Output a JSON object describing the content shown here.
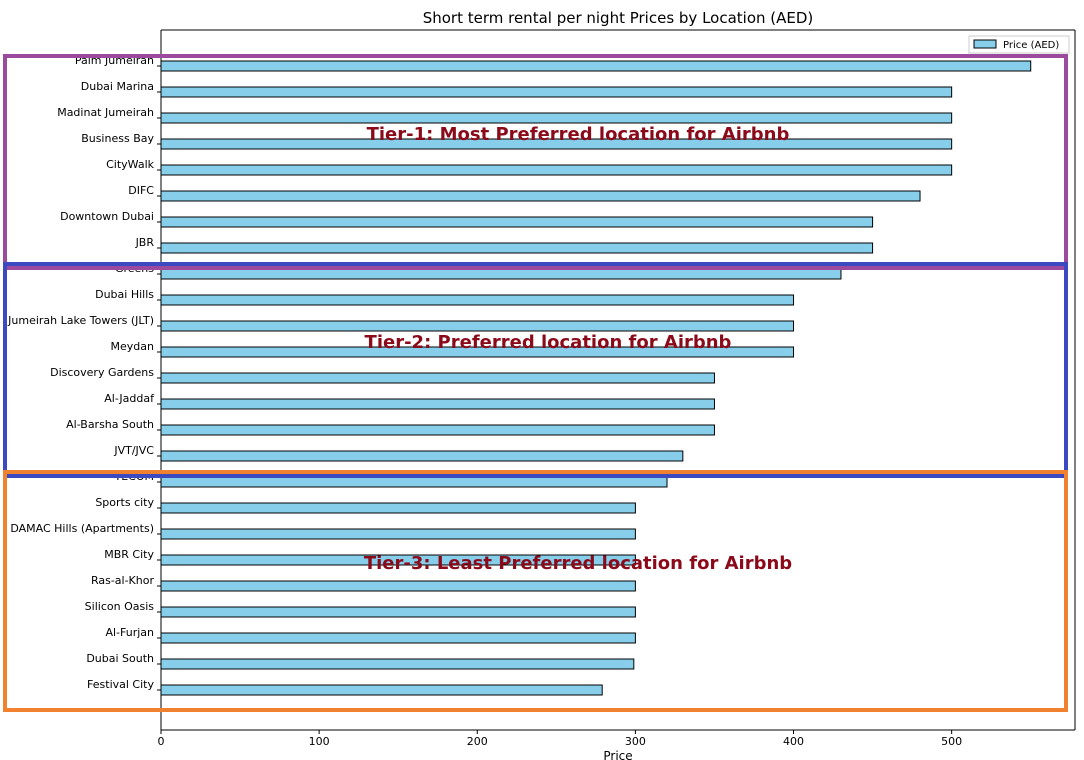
{
  "chart_data": {
    "type": "bar",
    "orientation": "horizontal",
    "title": "Short term rental per night Prices by Location (AED)",
    "xlabel": "Price",
    "ylabel": "",
    "xlim": [
      0,
      578
    ],
    "xticks": [
      0,
      100,
      200,
      300,
      400,
      500
    ],
    "grid": false,
    "legend": {
      "position": "top-right",
      "entries": [
        "Price (AED)"
      ]
    },
    "bar_color": "#87ceeb",
    "edge_color": "#000000",
    "categories": [
      "Palm Jumeirah",
      "Dubai Marina",
      "Madinat Jumeirah",
      "Business Bay",
      "CityWalk",
      "DIFC",
      "Downtown Dubai",
      "JBR",
      "Greens",
      "Dubai Hills",
      "Jumeirah Lake Towers (JLT)",
      "Meydan",
      "Discovery Gardens",
      "Al-Jaddaf",
      "Al-Barsha South",
      "JVT/JVC",
      "TECOM",
      "Sports city",
      "DAMAC Hills (Apartments)",
      "MBR City",
      "Ras-al-Khor",
      "Silicon Oasis",
      "Al-Furjan",
      "Dubai South",
      "Festival City"
    ],
    "series": [
      {
        "name": "Price (AED)",
        "values": [
          550,
          500,
          500,
          500,
          500,
          480,
          450,
          450,
          430,
          400,
          400,
          400,
          350,
          350,
          350,
          330,
          320,
          300,
          300,
          300,
          300,
          300,
          300,
          299,
          279
        ]
      }
    ],
    "annotations": [
      {
        "text": "Tier-1: Most Preferred location for Airbnb",
        "color": "#9b4a9e",
        "from": 0,
        "to": 7
      },
      {
        "text": "Tier-2: Preferred location for Airbnb",
        "color": "#3b4ac0",
        "from": 8,
        "to": 15
      },
      {
        "text": "Tier-3: Least Preferred location for Airbnb",
        "color": "#f0822f",
        "from": 16,
        "to": 24
      }
    ],
    "annotation_text_color": "#8b0a1a"
  }
}
